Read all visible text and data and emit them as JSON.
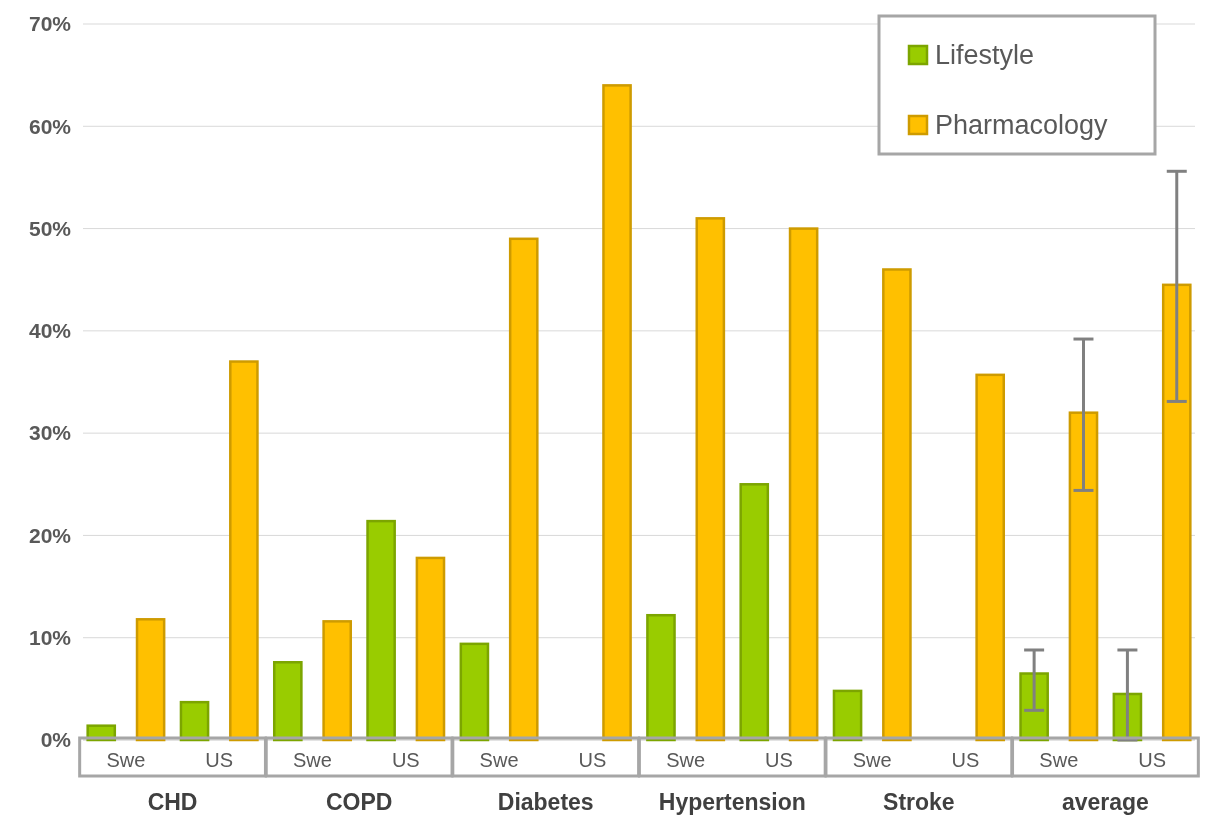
{
  "chart_data": {
    "type": "bar",
    "categories": [
      "Swe",
      "US",
      "Swe",
      "US",
      "Swe",
      "US",
      "Swe",
      "US",
      "Swe",
      "US",
      "Swe",
      "US"
    ],
    "series": [
      {
        "name": "Lifestyle",
        "color": "#99cc00",
        "values": [
          1.4,
          3.7,
          7.6,
          21.4,
          9.4,
          null,
          12.2,
          25,
          4.8,
          null,
          6.5,
          4.5
        ],
        "errors": [
          null,
          null,
          null,
          null,
          null,
          null,
          null,
          null,
          null,
          null,
          [
            2.9,
            8.8
          ],
          [
            0,
            8.8
          ]
        ]
      },
      {
        "name": "Pharmacology",
        "color": "#ffc000",
        "values": [
          11.8,
          37,
          11.6,
          17.8,
          49,
          64,
          51,
          50,
          46,
          35.7,
          32,
          44.5
        ],
        "errors": [
          null,
          null,
          null,
          null,
          null,
          null,
          null,
          null,
          null,
          null,
          [
            24.4,
            39.2
          ],
          [
            33.1,
            55.6
          ]
        ]
      }
    ],
    "annotations": [
      "CHD",
      "COPD",
      "Diabetes",
      "Hypertension",
      "Stroke",
      "average"
    ],
    "ylim": [
      0,
      70
    ],
    "yticks": [
      {
        "value": 0,
        "label": "0%"
      },
      {
        "value": 10,
        "label": "10%"
      },
      {
        "value": 20,
        "label": "20%"
      },
      {
        "value": 30,
        "label": "30%"
      },
      {
        "value": 40,
        "label": "40%"
      },
      {
        "value": 50,
        "label": "50%"
      },
      {
        "value": 60,
        "label": "60%"
      },
      {
        "value": 70,
        "label": "70%"
      }
    ],
    "grid": "y",
    "legend": "top right"
  }
}
